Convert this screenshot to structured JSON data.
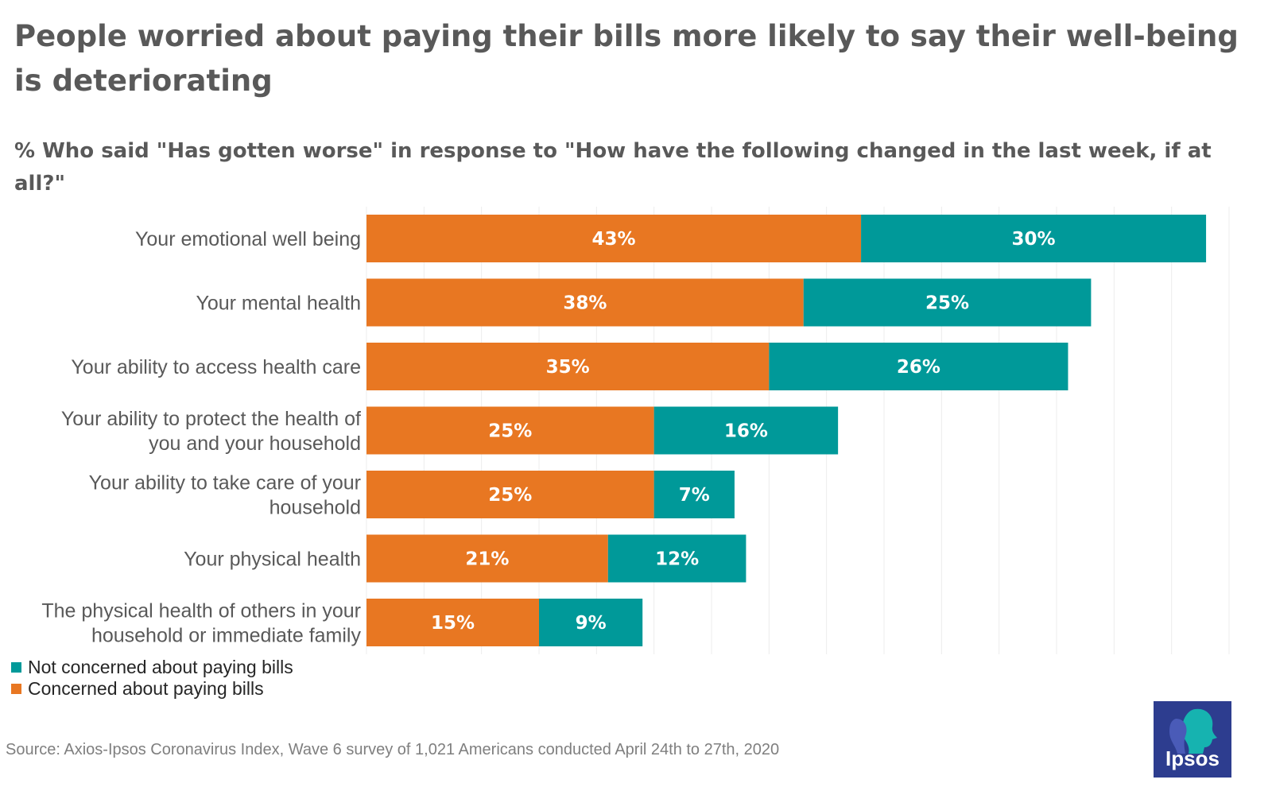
{
  "title": "People worried about paying their bills more likely to say their well-being is deteriorating",
  "subtitle": "% Who said \"Has gotten worse\" in response to \"How have the following changed in the last week, if at all?\"",
  "legend": [
    {
      "label": "Not concerned about paying bills",
      "color": "#009999"
    },
    {
      "label": "Concerned about paying bills",
      "color": "#e87722"
    }
  ],
  "source": "Source: Axios-Ipsos Coronavirus Index, Wave 6 survey of 1,021 Americans conducted April 24th to 27th, 2020",
  "logo": {
    "text": "Ipsos",
    "icon": "ipsos-head-icon",
    "color": "#2d3d8f"
  },
  "chart_data": {
    "type": "bar",
    "orientation": "horizontal",
    "stacked": true,
    "title": "People worried about paying their bills more likely to say their well-being is deteriorating",
    "subtitle": "% Who said \"Has gotten worse\" in response to \"How have the following changed in the last week, if at all?\"",
    "categories": [
      [
        "Your emotional well being"
      ],
      [
        "Your mental health"
      ],
      [
        "Your ability to access health care"
      ],
      [
        "Your ability to protect the health of",
        "you and your household"
      ],
      [
        "Your ability to take care of your",
        "household"
      ],
      [
        "Your physical health"
      ],
      [
        "The physical health of others in your",
        "household or immediate family"
      ]
    ],
    "series": [
      {
        "name": "Concerned about paying bills",
        "color": "#e87722",
        "values": [
          43,
          38,
          35,
          25,
          25,
          21,
          15
        ],
        "labels": [
          "43%",
          "38%",
          "35%",
          "25%",
          "25%",
          "21%",
          "15%"
        ]
      },
      {
        "name": "Not concerned about paying bills",
        "color": "#009999",
        "values": [
          30,
          25,
          26,
          16,
          7,
          12,
          9
        ],
        "labels": [
          "30%",
          "25%",
          "26%",
          "16%",
          "7%",
          "12%",
          "9%"
        ]
      }
    ],
    "xlim": [
      0,
      75
    ],
    "grid": true,
    "legend_position": "bottom-left",
    "xlabel": "",
    "ylabel": ""
  }
}
